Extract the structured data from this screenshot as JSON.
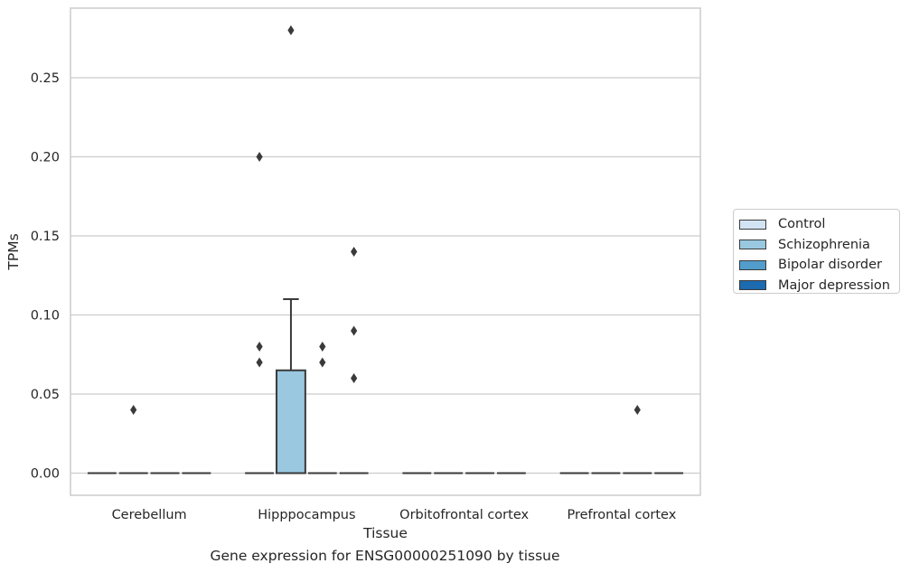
{
  "chart_data": {
    "type": "box",
    "categories": [
      "Cerebellum",
      "Hipppocampus",
      "Orbitofrontal cortex",
      "Prefrontal cortex"
    ],
    "xlabel": "Tissue",
    "ylabel": "TPMs",
    "caption": "Gene expression for ENSG00000251090 by tissue",
    "ylim": [
      -0.014,
      0.294
    ],
    "yticks": [
      "0.00",
      "0.05",
      "0.10",
      "0.15",
      "0.20",
      "0.25"
    ],
    "grid": true,
    "legend_position": "right",
    "series": [
      {
        "name": "Control",
        "color": "#d2e3f3",
        "boxes": [
          {
            "category": "Cerebellum",
            "q1": 0,
            "median": 0,
            "q3": 0,
            "whisker_low": 0,
            "whisker_high": 0,
            "outliers": []
          },
          {
            "category": "Hipppocampus",
            "q1": 0,
            "median": 0,
            "q3": 0,
            "whisker_low": 0,
            "whisker_high": 0,
            "outliers": [
              0.2,
              0.08,
              0.07
            ]
          },
          {
            "category": "Orbitofrontal cortex",
            "q1": 0,
            "median": 0,
            "q3": 0,
            "whisker_low": 0,
            "whisker_high": 0,
            "outliers": []
          },
          {
            "category": "Prefrontal cortex",
            "q1": 0,
            "median": 0,
            "q3": 0,
            "whisker_low": 0,
            "whisker_high": 0,
            "outliers": []
          }
        ]
      },
      {
        "name": "Schizophrenia",
        "color": "#9ac8e0",
        "boxes": [
          {
            "category": "Cerebellum",
            "q1": 0,
            "median": 0,
            "q3": 0,
            "whisker_low": 0,
            "whisker_high": 0,
            "outliers": [
              0.04
            ]
          },
          {
            "category": "Hipppocampus",
            "q1": 0,
            "median": 0,
            "q3": 0.065,
            "whisker_low": 0,
            "whisker_high": 0.11,
            "outliers": [
              0.28
            ]
          },
          {
            "category": "Orbitofrontal cortex",
            "q1": 0,
            "median": 0,
            "q3": 0,
            "whisker_low": 0,
            "whisker_high": 0,
            "outliers": []
          },
          {
            "category": "Prefrontal cortex",
            "q1": 0,
            "median": 0,
            "q3": 0,
            "whisker_low": 0,
            "whisker_high": 0,
            "outliers": []
          }
        ]
      },
      {
        "name": "Bipolar disorder",
        "color": "#529dcc",
        "boxes": [
          {
            "category": "Cerebellum",
            "q1": 0,
            "median": 0,
            "q3": 0,
            "whisker_low": 0,
            "whisker_high": 0,
            "outliers": []
          },
          {
            "category": "Hipppocampus",
            "q1": 0,
            "median": 0,
            "q3": 0,
            "whisker_low": 0,
            "whisker_high": 0,
            "outliers": [
              0.08,
              0.07
            ]
          },
          {
            "category": "Orbitofrontal cortex",
            "q1": 0,
            "median": 0,
            "q3": 0,
            "whisker_low": 0,
            "whisker_high": 0,
            "outliers": []
          },
          {
            "category": "Prefrontal cortex",
            "q1": 0,
            "median": 0,
            "q3": 0,
            "whisker_low": 0,
            "whisker_high": 0,
            "outliers": [
              0.04
            ]
          }
        ]
      },
      {
        "name": "Major depression",
        "color": "#1c6aaf",
        "boxes": [
          {
            "category": "Cerebellum",
            "q1": 0,
            "median": 0,
            "q3": 0,
            "whisker_low": 0,
            "whisker_high": 0,
            "outliers": []
          },
          {
            "category": "Hipppocampus",
            "q1": 0,
            "median": 0,
            "q3": 0,
            "whisker_low": 0,
            "whisker_high": 0,
            "outliers": [
              0.14,
              0.09,
              0.06
            ]
          },
          {
            "category": "Orbitofrontal cortex",
            "q1": 0,
            "median": 0,
            "q3": 0,
            "whisker_low": 0,
            "whisker_high": 0,
            "outliers": []
          },
          {
            "category": "Prefrontal cortex",
            "q1": 0,
            "median": 0,
            "q3": 0,
            "whisker_low": 0,
            "whisker_high": 0,
            "outliers": []
          }
        ]
      }
    ]
  },
  "legend": {
    "items": [
      {
        "label": "Control",
        "color": "#d2e3f3"
      },
      {
        "label": "Schizophrenia",
        "color": "#9ac8e0"
      },
      {
        "label": "Bipolar disorder",
        "color": "#529dcc"
      },
      {
        "label": "Major depression",
        "color": "#1c6aaf"
      }
    ]
  },
  "colors": {
    "grid": "#cccccc",
    "spine": "#cccccc",
    "box_edge": "#3a3a3a",
    "outlier": "#3a3a3a"
  }
}
